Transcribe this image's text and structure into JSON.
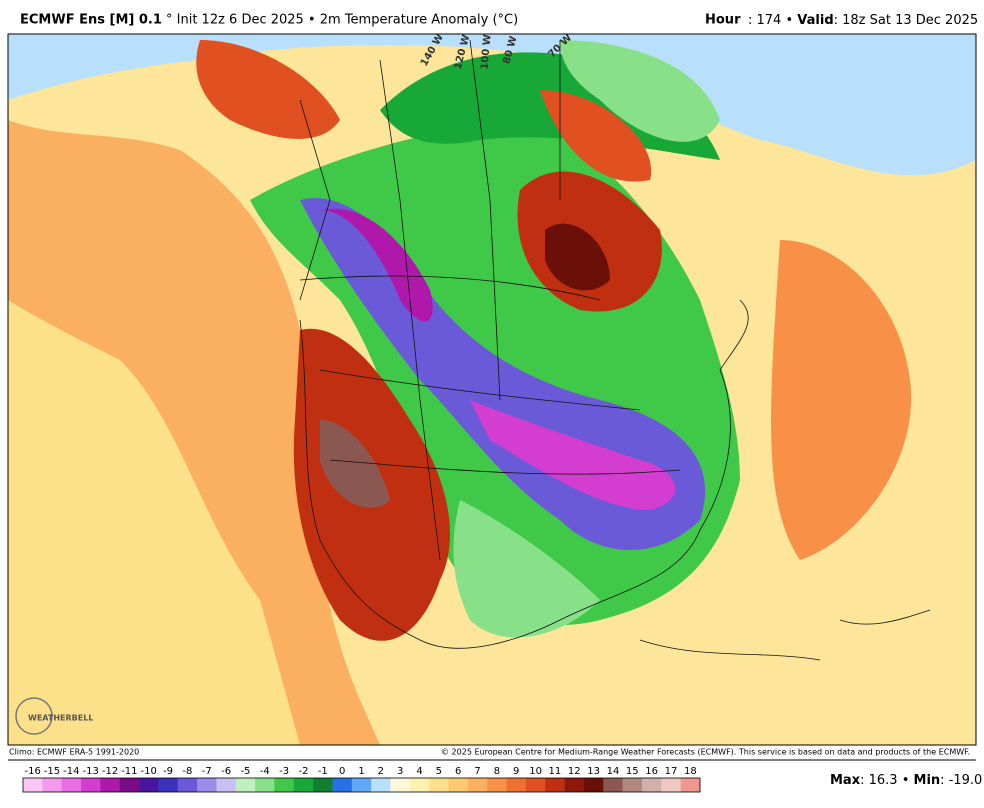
{
  "header": {
    "model": "ECMWF Ens [M] 0.1",
    "init": "° Init 12z 6 Dec 2025 • 2m Temperature Anomaly (°C)",
    "hour_label": "Hour",
    "hour": "174",
    "valid_label": "Valid",
    "valid": "18z Sat 13 Dec 2025"
  },
  "map": {
    "longitude_labels": [
      "140 W",
      "120 W",
      "100 W",
      "80 W",
      "70 W"
    ],
    "logo": "WEATHERBELL"
  },
  "footer": {
    "climo": "Climo: ECMWF ERA-5 1991-2020",
    "copyright": "© 2025 European Centre for Medium-Range Weather Forecasts (ECMWF). This service is based on data and products of the ECMWF."
  },
  "colorbar": {
    "labels": [
      -16,
      -15,
      -14,
      -13,
      -12,
      -11,
      -10,
      -9,
      -8,
      -7,
      -6,
      -5,
      -4,
      -3,
      -2,
      -1,
      0,
      1,
      2,
      3,
      4,
      5,
      6,
      7,
      8,
      9,
      10,
      11,
      12,
      13,
      14,
      15,
      16,
      17,
      18
    ],
    "colors": [
      "#fbc6f6",
      "#f39aee",
      "#ea6ee3",
      "#d43ed0",
      "#b018ac",
      "#7a0a86",
      "#4a14a0",
      "#3a32c0",
      "#6a5ad8",
      "#9a8ce8",
      "#c8c0f4",
      "#c0f0c0",
      "#88e088",
      "#40c848",
      "#18a838",
      "#108030",
      "#2870e8",
      "#60a8f8",
      "#b8e0fc",
      "#fff8d8",
      "#fff0b0",
      "#fde08a",
      "#fcc870",
      "#fab060",
      "#f89048",
      "#f07030",
      "#e05020",
      "#c03010",
      "#901808",
      "#6a1008",
      "#8a5850",
      "#b08880",
      "#d0b0a8",
      "#f0c8c0",
      "#f09890"
    ]
  },
  "stats": {
    "max_label": "Max",
    "max": "16.3",
    "min_label": "Min",
    "min": "-19.0"
  }
}
